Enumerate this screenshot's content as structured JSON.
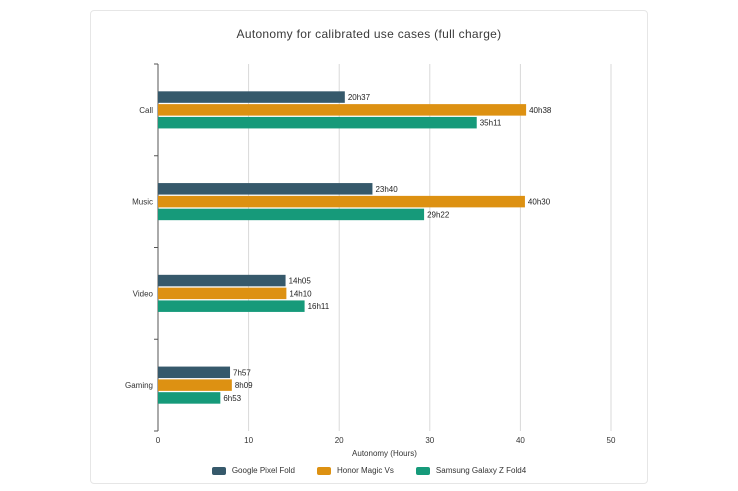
{
  "chart_data": {
    "type": "bar",
    "orientation": "horizontal",
    "title": "Autonomy for calibrated use cases (full charge)",
    "xlabel": "Autonomy (Hours)",
    "ylabel": "",
    "xlim": [
      0,
      50
    ],
    "xticks": [
      0,
      10,
      20,
      30,
      40,
      50
    ],
    "grid": true,
    "legend_position": "bottom",
    "categories": [
      "Call",
      "Music",
      "Video",
      "Gaming"
    ],
    "series": [
      {
        "name": "Google Pixel Fold",
        "color": "#36596b",
        "values": [
          20.62,
          23.67,
          14.08,
          7.95
        ],
        "labels": [
          "20h37",
          "23h40",
          "14h05",
          "7h57"
        ]
      },
      {
        "name": "Honor Magic Vs",
        "color": "#dd9112",
        "values": [
          40.63,
          40.5,
          14.17,
          8.15
        ],
        "labels": [
          "40h38",
          "40h30",
          "14h10",
          "8h09"
        ]
      },
      {
        "name": "Samsung Galaxy Z Fold4",
        "color": "#169a7a",
        "values": [
          35.18,
          29.37,
          16.18,
          6.88
        ],
        "labels": [
          "35h11",
          "29h22",
          "16h11",
          "6h53"
        ]
      }
    ]
  }
}
